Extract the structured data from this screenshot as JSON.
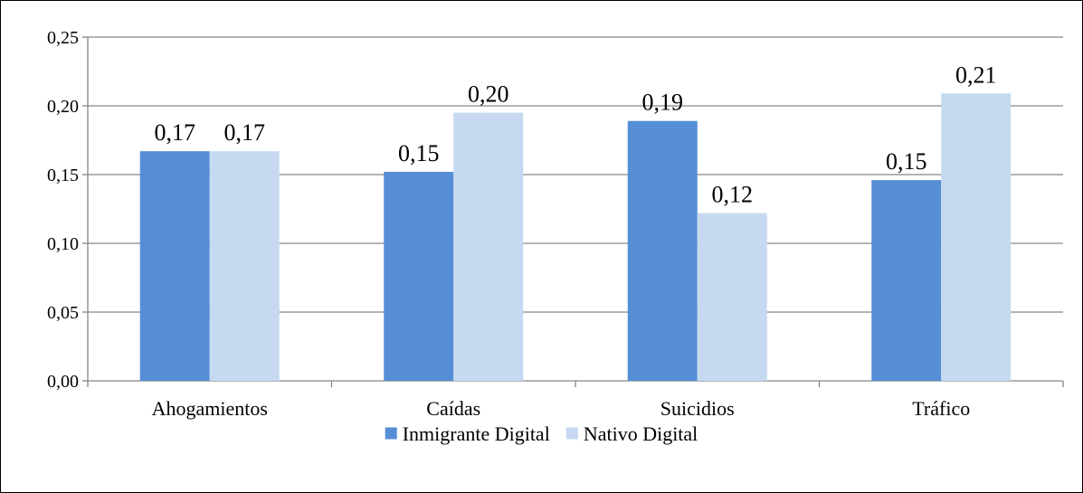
{
  "chart_data": {
    "type": "bar",
    "categories": [
      "Ahogamientos",
      "Caídas",
      "Suicidios",
      "Tráfico"
    ],
    "series": [
      {
        "name": "Inmigrante Digital",
        "values": [
          0.167,
          0.152,
          0.189,
          0.146
        ],
        "labels": [
          "0,17",
          "0,15",
          "0,19",
          "0,15"
        ],
        "color": "#558ed5"
      },
      {
        "name": "Nativo Digital",
        "values": [
          0.167,
          0.195,
          0.122,
          0.209
        ],
        "labels": [
          "0,17",
          "0,20",
          "0,12",
          "0,21"
        ],
        "color": "#c6d9f1"
      }
    ],
    "ylim": [
      0,
      0.25
    ],
    "yticks": [
      0,
      0.05,
      0.1,
      0.15,
      0.2,
      0.25
    ],
    "ytick_labels": [
      "0,00",
      "0,05",
      "0,10",
      "0,15",
      "0,20",
      "0,25"
    ],
    "grid": true,
    "gridline_color": "#868686",
    "legend_position": "bottom",
    "title": "",
    "xlabel": "",
    "ylabel": ""
  }
}
